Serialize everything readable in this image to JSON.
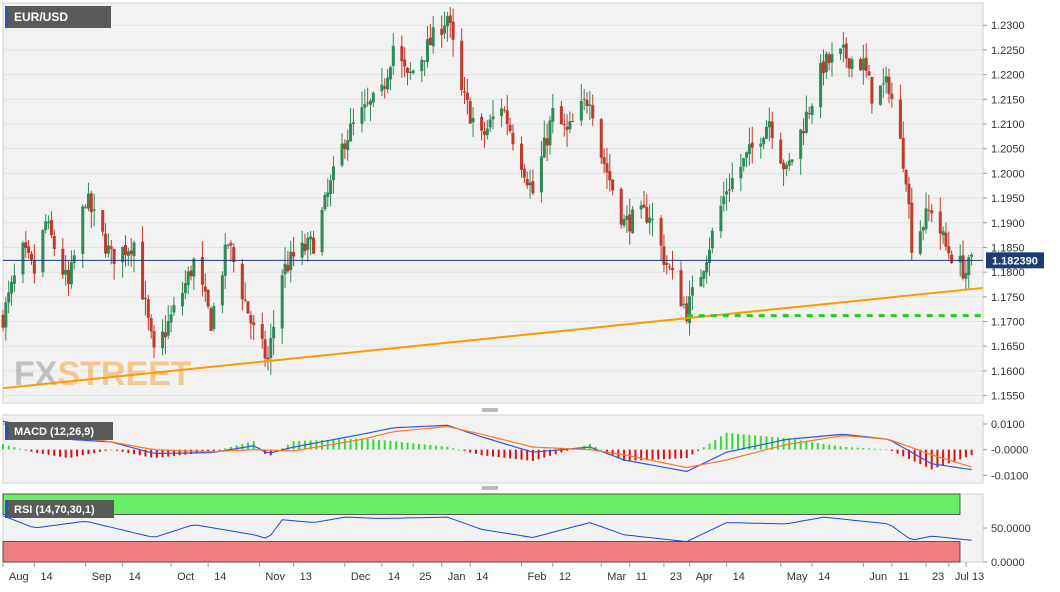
{
  "symbol": "EUR/USD",
  "watermark": {
    "fx": "FX",
    "street": "STREET"
  },
  "price_pane": {
    "y_ticks": [
      "1.2300",
      "1.2250",
      "1.2200",
      "1.2150",
      "1.2100",
      "1.2050",
      "1.2000",
      "1.1950",
      "1.1900",
      "1.1850",
      "1.1800",
      "1.1750",
      "1.1700",
      "1.1650",
      "1.1600",
      "1.1550"
    ],
    "current_price": "1.182390"
  },
  "macd_pane": {
    "label": "MACD (12,26,9)",
    "y_ticks": [
      "0.0100",
      "-0.0000",
      "-0.0100"
    ]
  },
  "rsi_pane": {
    "label": "RSI (14,70,30,1)",
    "y_ticks": [
      "50.0000",
      "0.0000"
    ]
  },
  "x_axis": {
    "labels": [
      "Aug",
      "14",
      "Sep",
      "14",
      "Oct",
      "14",
      "Nov",
      "13",
      "Dec",
      "14",
      "25",
      "Jan",
      "14",
      "Feb",
      "12",
      "Mar",
      "11",
      "23",
      "Apr",
      "14",
      "May",
      "14",
      "Jun",
      "11",
      "23",
      "Jul",
      "13"
    ]
  },
  "colors": {
    "bull": "#2e8b57",
    "bear": "#c0392b",
    "trendline": "#ff9900",
    "support": "#22cc22",
    "price_line": "#1f3b73",
    "macd_line": "#3355dd",
    "signal_line": "#ff7722",
    "hist_pos": "#33dd33",
    "hist_neg": "#dd1111",
    "rsi_line": "#2244cc",
    "overbought": "#66ee66",
    "oversold": "#f08080"
  },
  "chart_data": [
    {
      "type": "candlestick",
      "title": "EUR/USD",
      "ylim": [
        1.1535,
        1.2345
      ],
      "current_price": 1.18239,
      "annotations": [
        {
          "type": "trendline",
          "from": {
            "date": "Aug 03",
            "price": 1.1565
          },
          "to": {
            "date": "Jul 13",
            "price": 1.1768
          }
        },
        {
          "type": "support",
          "level": 1.1712,
          "from": "Mar 31",
          "to": "Jul 13"
        }
      ],
      "anchors": [
        {
          "d": "Aug 03",
          "p": 1.171
        },
        {
          "d": "Aug 10",
          "p": 1.184
        },
        {
          "d": "Aug 14",
          "p": 1.18
        },
        {
          "d": "Aug 18",
          "p": 1.19
        },
        {
          "d": "Aug 26",
          "p": 1.177
        },
        {
          "d": "Sep 01",
          "p": 1.195
        },
        {
          "d": "Sep 10",
          "p": 1.183
        },
        {
          "d": "Sep 18",
          "p": 1.186
        },
        {
          "d": "Sep 25",
          "p": 1.163
        },
        {
          "d": "Oct 05",
          "p": 1.176
        },
        {
          "d": "Oct 09",
          "p": 1.182
        },
        {
          "d": "Oct 15",
          "p": 1.17
        },
        {
          "d": "Oct 21",
          "p": 1.186
        },
        {
          "d": "Oct 30",
          "p": 1.168
        },
        {
          "d": "Nov 04",
          "p": 1.162
        },
        {
          "d": "Nov 09",
          "p": 1.18
        },
        {
          "d": "Nov 13",
          "p": 1.183
        },
        {
          "d": "Nov 20",
          "p": 1.186
        },
        {
          "d": "Dec 01",
          "p": 1.207
        },
        {
          "d": "Dec 07",
          "p": 1.212
        },
        {
          "d": "Dec 14",
          "p": 1.216
        },
        {
          "d": "Dec 18",
          "p": 1.226
        },
        {
          "d": "Dec 23",
          "p": 1.219
        },
        {
          "d": "Jan 06",
          "p": 1.232
        },
        {
          "d": "Jan 11",
          "p": 1.216
        },
        {
          "d": "Jan 18",
          "p": 1.207
        },
        {
          "d": "Jan 25",
          "p": 1.214
        },
        {
          "d": "Feb 05",
          "p": 1.196
        },
        {
          "d": "Feb 12",
          "p": 1.212
        },
        {
          "d": "Feb 17",
          "p": 1.208
        },
        {
          "d": "Feb 25",
          "p": 1.216
        },
        {
          "d": "Mar 01",
          "p": 1.204
        },
        {
          "d": "Mar 09",
          "p": 1.19
        },
        {
          "d": "Mar 18",
          "p": 1.192
        },
        {
          "d": "Mar 23",
          "p": 1.183
        },
        {
          "d": "Mar 31",
          "p": 1.172
        },
        {
          "d": "Apr 05",
          "p": 1.18
        },
        {
          "d": "Apr 14",
          "p": 1.197
        },
        {
          "d": "Apr 22",
          "p": 1.204
        },
        {
          "d": "Apr 29",
          "p": 1.211
        },
        {
          "d": "May 05",
          "p": 1.2
        },
        {
          "d": "May 14",
          "p": 1.215
        },
        {
          "d": "May 18",
          "p": 1.222
        },
        {
          "d": "May 25",
          "p": 1.224
        },
        {
          "d": "Jun 01",
          "p": 1.222
        },
        {
          "d": "Jun 04",
          "p": 1.216
        },
        {
          "d": "Jun 10",
          "p": 1.218
        },
        {
          "d": "Jun 16",
          "p": 1.2
        },
        {
          "d": "Jun 18",
          "p": 1.186
        },
        {
          "d": "Jun 25",
          "p": 1.193
        },
        {
          "d": "Jun 30",
          "p": 1.185
        },
        {
          "d": "Jul 07",
          "p": 1.18
        },
        {
          "d": "Jul 09",
          "p": 1.182
        }
      ]
    },
    {
      "type": "line",
      "title": "MACD (12,26,9)",
      "ylim": [
        -0.013,
        0.0135
      ],
      "series": [
        {
          "name": "MACD",
          "points": [
            {
              "d": "Aug 03",
              "v": 0.011
            },
            {
              "d": "Aug 14",
              "v": 0.009
            },
            {
              "d": "Aug 26",
              "v": 0.004
            },
            {
              "d": "Sep 10",
              "v": 0.003
            },
            {
              "d": "Sep 25",
              "v": -0.0015
            },
            {
              "d": "Oct 15",
              "v": -0.0012
            },
            {
              "d": "Oct 30",
              "v": 0.0015
            },
            {
              "d": "Nov 04",
              "v": -0.0015
            },
            {
              "d": "Nov 13",
              "v": 0.001
            },
            {
              "d": "Dec 07",
              "v": 0.006
            },
            {
              "d": "Dec 18",
              "v": 0.0085
            },
            {
              "d": "Jan 06",
              "v": 0.0095
            },
            {
              "d": "Jan 18",
              "v": 0.005
            },
            {
              "d": "Feb 05",
              "v": -0.001
            },
            {
              "d": "Feb 25",
              "v": 0.001
            },
            {
              "d": "Mar 09",
              "v": -0.004
            },
            {
              "d": "Mar 31",
              "v": -0.0085
            },
            {
              "d": "Apr 14",
              "v": -0.001
            },
            {
              "d": "May 05",
              "v": 0.004
            },
            {
              "d": "May 25",
              "v": 0.006
            },
            {
              "d": "Jun 10",
              "v": 0.004
            },
            {
              "d": "Jun 25",
              "v": -0.0055
            },
            {
              "d": "Jul 09",
              "v": -0.0078
            }
          ]
        },
        {
          "name": "Signal",
          "points": [
            {
              "d": "Aug 03",
              "v": 0.01
            },
            {
              "d": "Aug 14",
              "v": 0.0095
            },
            {
              "d": "Aug 26",
              "v": 0.0055
            },
            {
              "d": "Sep 10",
              "v": 0.003
            },
            {
              "d": "Sep 25",
              "v": 0.0
            },
            {
              "d": "Oct 15",
              "v": -0.0008
            },
            {
              "d": "Oct 30",
              "v": 0.0
            },
            {
              "d": "Nov 13",
              "v": -0.0005
            },
            {
              "d": "Dec 07",
              "v": 0.004
            },
            {
              "d": "Dec 18",
              "v": 0.007
            },
            {
              "d": "Jan 06",
              "v": 0.009
            },
            {
              "d": "Jan 18",
              "v": 0.006
            },
            {
              "d": "Feb 05",
              "v": 0.001
            },
            {
              "d": "Feb 25",
              "v": 0.0
            },
            {
              "d": "Mar 09",
              "v": -0.002
            },
            {
              "d": "Mar 31",
              "v": -0.007
            },
            {
              "d": "Apr 14",
              "v": -0.004
            },
            {
              "d": "May 05",
              "v": 0.002
            },
            {
              "d": "May 25",
              "v": 0.0055
            },
            {
              "d": "Jun 10",
              "v": 0.004
            },
            {
              "d": "Jun 25",
              "v": -0.002
            },
            {
              "d": "Jul 09",
              "v": -0.0068
            }
          ]
        }
      ]
    },
    {
      "type": "line",
      "title": "RSI (14,70,30,1)",
      "ylim": [
        0,
        100
      ],
      "overbought": 70,
      "oversold": 30,
      "series": [
        {
          "name": "RSI",
          "points": [
            {
              "d": "Aug 03",
              "v": 68
            },
            {
              "d": "Aug 14",
              "v": 50
            },
            {
              "d": "Sep 01",
              "v": 60
            },
            {
              "d": "Sep 25",
              "v": 36
            },
            {
              "d": "Oct 09",
              "v": 55
            },
            {
              "d": "Oct 30",
              "v": 40
            },
            {
              "d": "Nov 04",
              "v": 34
            },
            {
              "d": "Nov 09",
              "v": 62
            },
            {
              "d": "Nov 20",
              "v": 58
            },
            {
              "d": "Dec 01",
              "v": 66
            },
            {
              "d": "Dec 14",
              "v": 64
            },
            {
              "d": "Jan 06",
              "v": 66
            },
            {
              "d": "Jan 18",
              "v": 48
            },
            {
              "d": "Feb 05",
              "v": 36
            },
            {
              "d": "Feb 25",
              "v": 58
            },
            {
              "d": "Mar 09",
              "v": 40
            },
            {
              "d": "Mar 31",
              "v": 30
            },
            {
              "d": "Apr 14",
              "v": 58
            },
            {
              "d": "May 05",
              "v": 56
            },
            {
              "d": "May 18",
              "v": 66
            },
            {
              "d": "Jun 10",
              "v": 56
            },
            {
              "d": "Jun 18",
              "v": 32
            },
            {
              "d": "Jun 25",
              "v": 38
            },
            {
              "d": "Jul 09",
              "v": 32
            }
          ]
        }
      ]
    }
  ]
}
